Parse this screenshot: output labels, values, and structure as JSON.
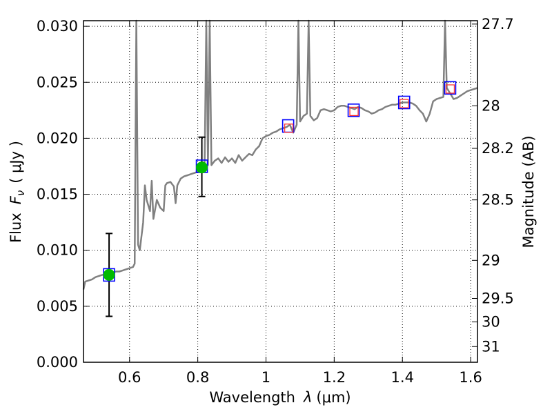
{
  "chart_data": {
    "type": "scatter",
    "title": "",
    "xlabel": {
      "text": "Wavelength",
      "symbol": "λ",
      "unit": "(μm)"
    },
    "ylabel": {
      "text": "Flux",
      "symbol": "F",
      "subscript": "ν",
      "unit": "( μJy )"
    },
    "y2label": "Magnitude (AB)",
    "xlim": [
      0.465,
      1.62
    ],
    "ylim": [
      0.0,
      0.0305
    ],
    "grid": true,
    "x_ticks": [
      {
        "value": 0.6,
        "label": "0.6"
      },
      {
        "value": 0.8,
        "label": "0.8"
      },
      {
        "value": 1.0,
        "label": "1"
      },
      {
        "value": 1.2,
        "label": "1.2"
      },
      {
        "value": 1.4,
        "label": "1.4"
      },
      {
        "value": 1.6,
        "label": "1.6"
      }
    ],
    "y_ticks": [
      {
        "value": 0.0,
        "label": "0.000"
      },
      {
        "value": 0.005,
        "label": "0.005"
      },
      {
        "value": 0.01,
        "label": "0.010"
      },
      {
        "value": 0.015,
        "label": "0.015"
      },
      {
        "value": 0.02,
        "label": "0.020"
      },
      {
        "value": 0.025,
        "label": "0.025"
      },
      {
        "value": 0.03,
        "label": "0.030"
      }
    ],
    "y2_ticks": [
      {
        "flux": 0.0302,
        "label": "27.7"
      },
      {
        "flux": 0.0229,
        "label": "28"
      },
      {
        "flux": 0.0191,
        "label": "28.2"
      },
      {
        "flux": 0.0145,
        "label": "28.5"
      },
      {
        "flux": 0.0091,
        "label": "29"
      },
      {
        "flux": 0.0057,
        "label": "29.5"
      },
      {
        "flux": 0.0036,
        "label": "30"
      },
      {
        "flux": 0.0014,
        "label": "31"
      }
    ],
    "series": [
      {
        "name": "model spectrum",
        "kind": "line",
        "color": "#808080",
        "points": [
          [
            0.465,
            0.0065
          ],
          [
            0.47,
            0.0072
          ],
          [
            0.48,
            0.0073
          ],
          [
            0.49,
            0.0074
          ],
          [
            0.5,
            0.0076
          ],
          [
            0.51,
            0.0077
          ],
          [
            0.52,
            0.0078
          ],
          [
            0.53,
            0.0078
          ],
          [
            0.54,
            0.0079
          ],
          [
            0.55,
            0.008
          ],
          [
            0.56,
            0.0081
          ],
          [
            0.57,
            0.0081
          ],
          [
            0.58,
            0.0082
          ],
          [
            0.59,
            0.0083
          ],
          [
            0.6,
            0.0084
          ],
          [
            0.61,
            0.0085
          ],
          [
            0.615,
            0.0088
          ],
          [
            0.62,
            0.031
          ],
          [
            0.625,
            0.0105
          ],
          [
            0.63,
            0.01
          ],
          [
            0.64,
            0.0125
          ],
          [
            0.645,
            0.0158
          ],
          [
            0.65,
            0.0145
          ],
          [
            0.66,
            0.0135
          ],
          [
            0.665,
            0.0162
          ],
          [
            0.67,
            0.0128
          ],
          [
            0.68,
            0.0145
          ],
          [
            0.69,
            0.0138
          ],
          [
            0.7,
            0.0135
          ],
          [
            0.705,
            0.0158
          ],
          [
            0.71,
            0.016
          ],
          [
            0.72,
            0.0161
          ],
          [
            0.73,
            0.0157
          ],
          [
            0.735,
            0.0142
          ],
          [
            0.74,
            0.0158
          ],
          [
            0.75,
            0.0164
          ],
          [
            0.76,
            0.0166
          ],
          [
            0.77,
            0.0167
          ],
          [
            0.78,
            0.0168
          ],
          [
            0.79,
            0.0169
          ],
          [
            0.8,
            0.017
          ],
          [
            0.81,
            0.0172
          ],
          [
            0.82,
            0.0174
          ],
          [
            0.825,
            0.031
          ],
          [
            0.83,
            0.0176
          ],
          [
            0.835,
            0.031
          ],
          [
            0.84,
            0.0176
          ],
          [
            0.85,
            0.018
          ],
          [
            0.86,
            0.0182
          ],
          [
            0.87,
            0.0178
          ],
          [
            0.88,
            0.0183
          ],
          [
            0.89,
            0.0179
          ],
          [
            0.9,
            0.0182
          ],
          [
            0.91,
            0.0178
          ],
          [
            0.92,
            0.0185
          ],
          [
            0.93,
            0.018
          ],
          [
            0.94,
            0.0183
          ],
          [
            0.95,
            0.0186
          ],
          [
            0.96,
            0.0185
          ],
          [
            0.97,
            0.019
          ],
          [
            0.98,
            0.0193
          ],
          [
            0.99,
            0.02
          ],
          [
            1.0,
            0.0202
          ],
          [
            1.01,
            0.0203
          ],
          [
            1.02,
            0.0205
          ],
          [
            1.03,
            0.0206
          ],
          [
            1.04,
            0.0208
          ],
          [
            1.05,
            0.0209
          ],
          [
            1.06,
            0.021
          ],
          [
            1.07,
            0.0212
          ],
          [
            1.08,
            0.0205
          ],
          [
            1.09,
            0.0212
          ],
          [
            1.095,
            0.031
          ],
          [
            1.1,
            0.0215
          ],
          [
            1.11,
            0.022
          ],
          [
            1.12,
            0.0222
          ],
          [
            1.125,
            0.031
          ],
          [
            1.13,
            0.022
          ],
          [
            1.14,
            0.0216
          ],
          [
            1.15,
            0.0218
          ],
          [
            1.16,
            0.0225
          ],
          [
            1.17,
            0.0226
          ],
          [
            1.18,
            0.0225
          ],
          [
            1.19,
            0.0224
          ],
          [
            1.2,
            0.0225
          ],
          [
            1.21,
            0.0228
          ],
          [
            1.22,
            0.0229
          ],
          [
            1.23,
            0.0229
          ],
          [
            1.24,
            0.0228
          ],
          [
            1.25,
            0.0227
          ],
          [
            1.26,
            0.0226
          ],
          [
            1.27,
            0.0228
          ],
          [
            1.28,
            0.0227
          ],
          [
            1.29,
            0.0225
          ],
          [
            1.3,
            0.0224
          ],
          [
            1.31,
            0.0222
          ],
          [
            1.32,
            0.0223
          ],
          [
            1.33,
            0.0225
          ],
          [
            1.34,
            0.0226
          ],
          [
            1.35,
            0.0228
          ],
          [
            1.36,
            0.0229
          ],
          [
            1.37,
            0.023
          ],
          [
            1.38,
            0.023
          ],
          [
            1.39,
            0.0231
          ],
          [
            1.4,
            0.0232
          ],
          [
            1.41,
            0.0232
          ],
          [
            1.42,
            0.0232
          ],
          [
            1.43,
            0.0231
          ],
          [
            1.44,
            0.0229
          ],
          [
            1.45,
            0.0225
          ],
          [
            1.46,
            0.0222
          ],
          [
            1.47,
            0.0215
          ],
          [
            1.48,
            0.0222
          ],
          [
            1.49,
            0.0233
          ],
          [
            1.5,
            0.0235
          ],
          [
            1.51,
            0.0236
          ],
          [
            1.52,
            0.0237
          ],
          [
            1.525,
            0.031
          ],
          [
            1.53,
            0.0245
          ],
          [
            1.54,
            0.024
          ],
          [
            1.55,
            0.0235
          ],
          [
            1.56,
            0.0236
          ],
          [
            1.57,
            0.0238
          ],
          [
            1.58,
            0.024
          ],
          [
            1.59,
            0.0242
          ],
          [
            1.6,
            0.0243
          ],
          [
            1.61,
            0.0244
          ],
          [
            1.62,
            0.0245
          ]
        ]
      },
      {
        "name": "observed photometry",
        "kind": "points-with-errorbars",
        "color": "#00bb00",
        "points": [
          {
            "x": 0.54,
            "y": 0.0078,
            "yerr_low": 0.0041,
            "yerr_high": 0.0115
          },
          {
            "x": 0.812,
            "y": 0.0174,
            "yerr_low": 0.0148,
            "yerr_high": 0.0201
          }
        ]
      },
      {
        "name": "model photometry",
        "kind": "open-squares",
        "color": "#0000ff",
        "points": [
          {
            "x": 0.54,
            "y": 0.0078
          },
          {
            "x": 0.812,
            "y": 0.0175
          },
          {
            "x": 1.065,
            "y": 0.0211
          },
          {
            "x": 1.257,
            "y": 0.0225
          },
          {
            "x": 1.405,
            "y": 0.0232
          },
          {
            "x": 1.54,
            "y": 0.0245
          }
        ]
      },
      {
        "name": "upper limits",
        "kind": "open-squares",
        "color": "#ff3333",
        "points": [
          {
            "x": 1.067,
            "y": 0.0209
          },
          {
            "x": 1.258,
            "y": 0.0224
          },
          {
            "x": 1.405,
            "y": 0.0231
          },
          {
            "x": 1.54,
            "y": 0.0244
          }
        ]
      }
    ]
  }
}
